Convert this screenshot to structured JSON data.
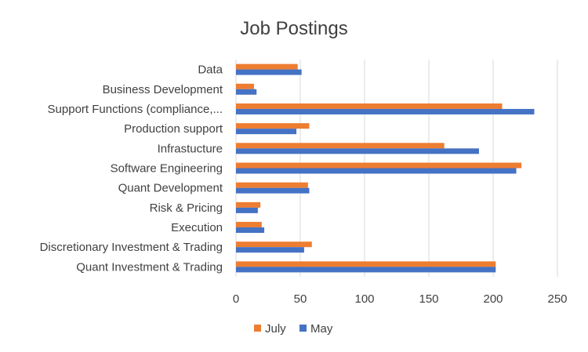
{
  "chart_data": {
    "type": "bar",
    "orientation": "horizontal",
    "title": "Job Postings",
    "xlabel": "",
    "ylabel": "",
    "categories": [
      "Data",
      "Business Development",
      "Support Functions (compliance,...",
      "Production support",
      "Infrastucture",
      "Software Engineering",
      "Quant Development",
      "Risk & Pricing",
      "Execution",
      "Discretionary Investment & Trading",
      "Quant Investment & Trading"
    ],
    "series": [
      {
        "name": "July",
        "color": "#ed7d31",
        "values": [
          48,
          14,
          207,
          57,
          162,
          222,
          56,
          19,
          20,
          59,
          202
        ]
      },
      {
        "name": "May",
        "color": "#4472c4",
        "values": [
          51,
          16,
          232,
          47,
          189,
          218,
          57,
          17,
          22,
          53,
          202
        ]
      }
    ],
    "xlim": [
      0,
      250
    ],
    "xticks": [
      0,
      50,
      100,
      150,
      200,
      250
    ],
    "grid": true,
    "legend_position": "bottom"
  }
}
